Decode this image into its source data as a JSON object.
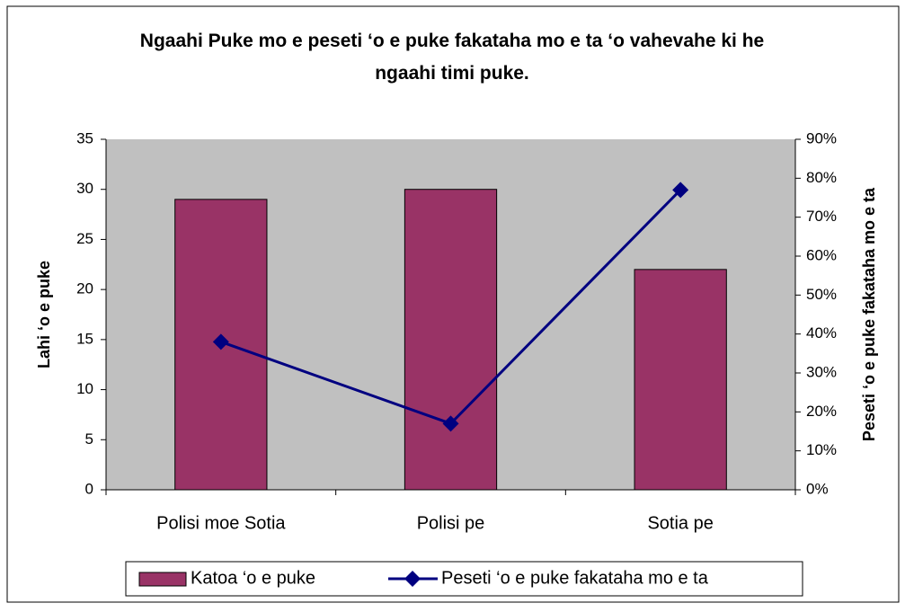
{
  "chart_data": {
    "type": "bar",
    "title": "Ngaahi Puke mo e peseti ‘o e puke fakataha mo e ta ‘o vahevahe ki he ngaahi timi puke.",
    "categories": [
      "Polisi moe Sotia",
      "Polisi pe",
      "Sotia pe"
    ],
    "series": [
      {
        "name": "Katoa ‘o e puke",
        "type": "bar",
        "color": "#993366",
        "values": [
          29,
          30,
          22
        ]
      },
      {
        "name": "Peseti ‘o e puke fakataha mo e ta",
        "type": "line",
        "axis": "y2",
        "color": "#000080",
        "values": [
          38,
          17,
          77
        ]
      }
    ],
    "ylabel": "Lahi ‘o e puke",
    "y2label": "Peseti ‘o e puke fakataha mo e ta",
    "ylim": [
      0,
      35
    ],
    "yticks": [
      0,
      5,
      10,
      15,
      20,
      25,
      30,
      35
    ],
    "y2lim": [
      0,
      90
    ],
    "y2ticks": [
      {
        "value": 0,
        "label": "0%"
      },
      {
        "value": 10,
        "label": "10%"
      },
      {
        "value": 20,
        "label": "20%"
      },
      {
        "value": 30,
        "label": "30%"
      },
      {
        "value": 40,
        "label": "40%"
      },
      {
        "value": 50,
        "label": "50%"
      },
      {
        "value": 60,
        "label": "60%"
      },
      {
        "value": 70,
        "label": "70%"
      },
      {
        "value": 80,
        "label": "80%"
      },
      {
        "value": 90,
        "label": "90%"
      }
    ],
    "grid": false,
    "legend": "bottom"
  }
}
